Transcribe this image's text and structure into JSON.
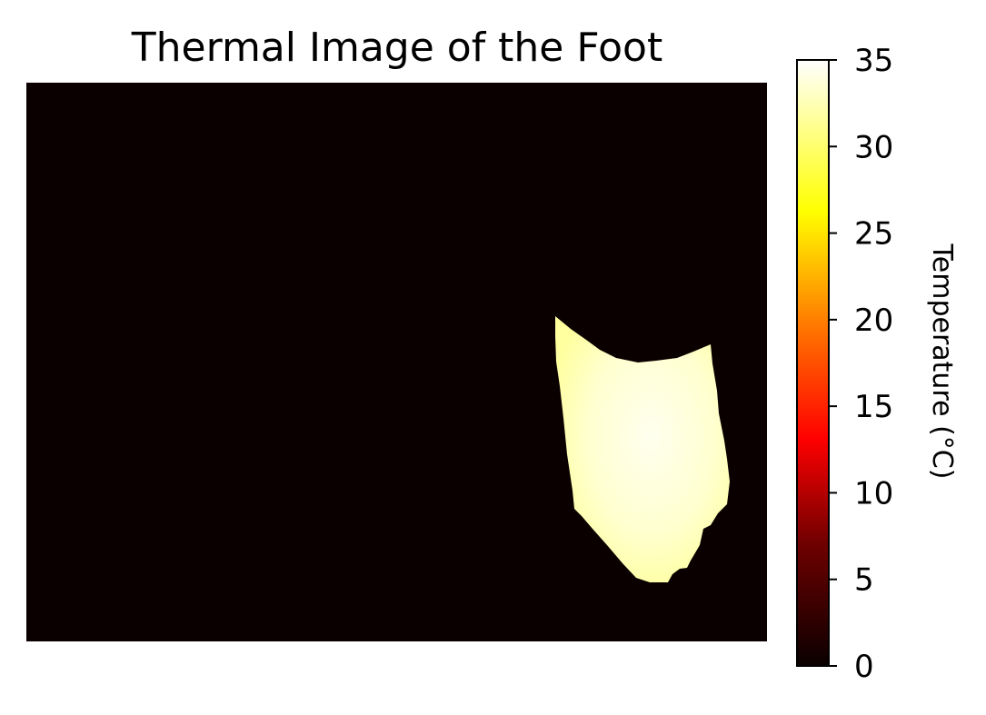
{
  "chart_data": {
    "type": "heatmap",
    "title": "Thermal Image of the Foot",
    "colormap": "hot",
    "colorbar": {
      "label": "Temperature (°C)",
      "range": [
        0,
        35
      ],
      "ticks": [
        0,
        5,
        10,
        15,
        20,
        25,
        30,
        35
      ],
      "tick_labels": [
        "0",
        "5",
        "10",
        "15",
        "20",
        "25",
        "30",
        "35"
      ],
      "placement": "right"
    },
    "axes_visible": false,
    "background_temperature": 0,
    "foot_region_temperature_range": [
      32,
      35
    ],
    "colors": {
      "background": "#0b0000",
      "foot_core": "#ffffe6",
      "foot_edge": "#ffff9c"
    }
  }
}
